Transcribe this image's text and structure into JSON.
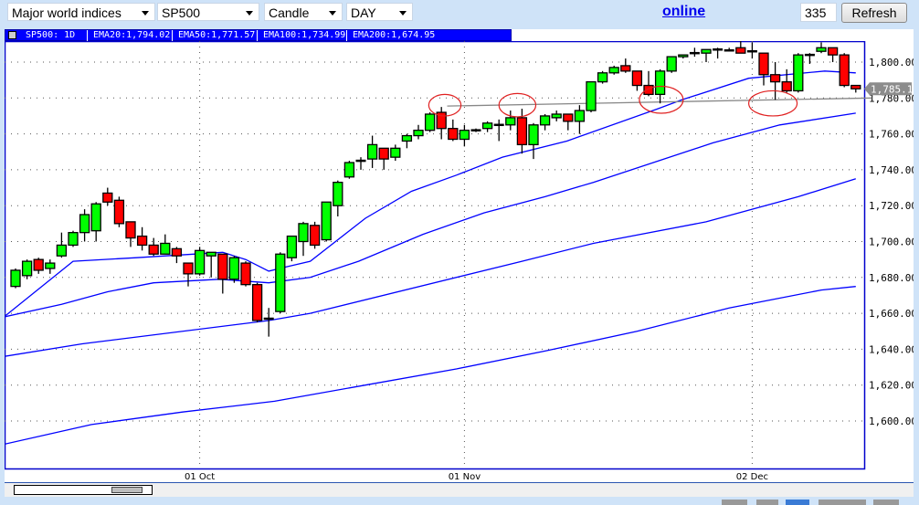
{
  "toolbar": {
    "market_select": "Major world indices",
    "symbol_select": "SP500",
    "chart_type_select": "Candle",
    "period_select": "DAY",
    "status_link": "online",
    "bars_count": "335",
    "refresh_label": "Refresh"
  },
  "chart_header": {
    "symbol": "SP500: 1D",
    "ema20": "EMA20:1,794.02",
    "ema50": "EMA50:1,771.57",
    "ema100": "EMA100:1,734.99",
    "ema200": "EMA200:1,674.95"
  },
  "colors": {
    "up_candle": "#00ff00",
    "down_candle": "#ff0000",
    "ema_line": "#0000ff",
    "annotation": "#e02020",
    "support_line": "#888888",
    "header_bar": "#0000ff"
  },
  "chart_data": {
    "type": "candlestick",
    "ylim": [
      1580,
      1818
    ],
    "grid": true,
    "y_ticks": [
      "1,600.00",
      "1,620.00",
      "1,640.00",
      "1,660.00",
      "1,680.00",
      "1,700.00",
      "1,720.00",
      "1,740.00",
      "1,760.00",
      "1,780.00",
      "1,800.00"
    ],
    "y_tick_values": [
      1600,
      1620,
      1640,
      1660,
      1680,
      1700,
      1720,
      1740,
      1760,
      1780,
      1800
    ],
    "x_ticks": [
      {
        "label": "01 Oct",
        "index": 16
      },
      {
        "label": "01 Nov",
        "index": 39
      },
      {
        "label": "02 Dec",
        "index": 64
      }
    ],
    "last_price_label": "1,785.11",
    "last_price": 1785.11,
    "candles_ohlc": [
      [
        1675,
        1685,
        1674,
        1684
      ],
      [
        1681,
        1690,
        1679,
        1689
      ],
      [
        1690,
        1691,
        1682,
        1684
      ],
      [
        1685,
        1690,
        1682,
        1688
      ],
      [
        1692,
        1705,
        1691,
        1698
      ],
      [
        1698,
        1706,
        1697,
        1705
      ],
      [
        1705,
        1718,
        1700,
        1715
      ],
      [
        1706,
        1722,
        1700,
        1721
      ],
      [
        1727,
        1730,
        1720,
        1722
      ],
      [
        1723,
        1725,
        1708,
        1710
      ],
      [
        1711,
        1711,
        1697,
        1702
      ],
      [
        1703,
        1708,
        1695,
        1698
      ],
      [
        1698,
        1702,
        1692,
        1693
      ],
      [
        1693,
        1704,
        1693,
        1699
      ],
      [
        1696,
        1697,
        1688,
        1692
      ],
      [
        1688,
        1688,
        1675,
        1682
      ],
      [
        1682,
        1697,
        1681,
        1695
      ],
      [
        1692,
        1694,
        1680,
        1694
      ],
      [
        1693,
        1693,
        1671,
        1679
      ],
      [
        1679,
        1692,
        1677,
        1691
      ],
      [
        1688,
        1689,
        1675,
        1676
      ],
      [
        1676,
        1677,
        1655,
        1656
      ],
      [
        1657,
        1663,
        1647,
        1657.3
      ],
      [
        1661,
        1694,
        1660,
        1693
      ],
      [
        1691,
        1703,
        1689,
        1703
      ],
      [
        1700,
        1711,
        1692,
        1710
      ],
      [
        1709,
        1711,
        1696,
        1698
      ],
      [
        1701,
        1722,
        1700,
        1722
      ],
      [
        1720,
        1734,
        1714,
        1733
      ],
      [
        1736,
        1745,
        1735,
        1744
      ],
      [
        1745,
        1747,
        1740,
        1745.3
      ],
      [
        1746,
        1759,
        1741,
        1754
      ],
      [
        1752,
        1752,
        1740,
        1746
      ],
      [
        1747,
        1754,
        1745,
        1752
      ],
      [
        1756,
        1760,
        1752,
        1759
      ],
      [
        1759,
        1765,
        1757,
        1762
      ],
      [
        1762,
        1772,
        1761,
        1771
      ],
      [
        1772,
        1775,
        1757,
        1763
      ],
      [
        1763,
        1768,
        1756,
        1757
      ],
      [
        1757,
        1765,
        1753,
        1762
      ],
      [
        1762,
        1763,
        1761,
        1762.3
      ],
      [
        1763,
        1767,
        1761,
        1766
      ],
      [
        1765,
        1768,
        1756,
        1765.3
      ],
      [
        1765,
        1773,
        1762,
        1769
      ],
      [
        1769,
        1774,
        1749,
        1754
      ],
      [
        1754,
        1766,
        1746,
        1765
      ],
      [
        1765,
        1771,
        1762,
        1770
      ],
      [
        1769,
        1773,
        1767,
        1771
      ],
      [
        1771,
        1771,
        1762,
        1767
      ],
      [
        1767,
        1776,
        1760,
        1773
      ],
      [
        1773,
        1789,
        1772,
        1789
      ],
      [
        1789,
        1795,
        1788,
        1794
      ],
      [
        1794,
        1798,
        1793,
        1797
      ],
      [
        1798,
        1802,
        1794,
        1795
      ],
      [
        1795,
        1795,
        1784,
        1787
      ],
      [
        1787,
        1795,
        1781,
        1782
      ],
      [
        1782,
        1796,
        1777,
        1795
      ],
      [
        1795,
        1803,
        1794,
        1803
      ],
      [
        1803,
        1804,
        1802,
        1804
      ],
      [
        1805,
        1808,
        1803,
        1805.3
      ],
      [
        1805,
        1807,
        1800,
        1807
      ],
      [
        1807,
        1808,
        1802,
        1807.3
      ],
      [
        1806.5,
        1808,
        1806,
        1806.8
      ],
      [
        1808,
        1813,
        1805,
        1805
      ],
      [
        1806,
        1811,
        1802,
        1806.2
      ],
      [
        1805,
        1805,
        1787,
        1793
      ],
      [
        1793,
        1800,
        1779,
        1789
      ],
      [
        1789,
        1796,
        1783,
        1784
      ],
      [
        1784,
        1805,
        1783,
        1804
      ],
      [
        1804,
        1805,
        1799,
        1804.3
      ],
      [
        1806,
        1811,
        1805,
        1808
      ],
      [
        1808,
        1808,
        1800,
        1804
      ],
      [
        1804,
        1805,
        1786,
        1787
      ],
      [
        1787,
        1787,
        1783,
        1785.11
      ]
    ],
    "ema_series": [
      {
        "name": "EMA20",
        "points": [
          [
            -1,
            1658
          ],
          [
            5,
            1689
          ],
          [
            10.5,
            1691
          ],
          [
            18,
            1694
          ],
          [
            20,
            1690
          ],
          [
            22,
            1683.5
          ],
          [
            23.6,
            1686
          ],
          [
            25.6,
            1689
          ],
          [
            30.4,
            1713
          ],
          [
            34.4,
            1728
          ],
          [
            38.3,
            1737
          ],
          [
            42.3,
            1747
          ],
          [
            47.9,
            1756
          ],
          [
            55.8,
            1774
          ],
          [
            57.9,
            1779
          ],
          [
            63.7,
            1791
          ],
          [
            70.3,
            1795
          ],
          [
            73,
            1794.02
          ]
        ]
      },
      {
        "name": "EMA50",
        "points": [
          [
            -1,
            1658
          ],
          [
            4,
            1665
          ],
          [
            8,
            1672
          ],
          [
            12,
            1677
          ],
          [
            17.7,
            1679
          ],
          [
            22,
            1677
          ],
          [
            25.6,
            1680
          ],
          [
            29.8,
            1689
          ],
          [
            35.4,
            1704
          ],
          [
            40.7,
            1716
          ],
          [
            46,
            1725
          ],
          [
            50.2,
            1733
          ],
          [
            60.6,
            1755
          ],
          [
            66.4,
            1765
          ],
          [
            73,
            1771.57
          ]
        ]
      },
      {
        "name": "EMA100",
        "points": [
          [
            -1,
            1636
          ],
          [
            5.8,
            1643
          ],
          [
            22,
            1656
          ],
          [
            25.6,
            1660
          ],
          [
            44,
            1689
          ],
          [
            50.2,
            1699
          ],
          [
            60,
            1711
          ],
          [
            68,
            1725
          ],
          [
            73,
            1734.99
          ]
        ]
      },
      {
        "name": "EMA200",
        "points": [
          [
            -1,
            1587
          ],
          [
            6.6,
            1598
          ],
          [
            14.5,
            1605
          ],
          [
            22.5,
            1611
          ],
          [
            30.4,
            1620
          ],
          [
            38.3,
            1629
          ],
          [
            46,
            1639
          ],
          [
            54,
            1650
          ],
          [
            62,
            1663
          ],
          [
            70,
            1673
          ],
          [
            73,
            1674.95
          ]
        ]
      }
    ],
    "support_line": [
      [
        37.5,
        1775.5
      ],
      [
        74.4,
        1780
      ]
    ],
    "annotation_ellipses": [
      {
        "index": 37.3,
        "price": 1776,
        "rx_bars": 1.4,
        "ry_price": 6
      },
      {
        "index": 43.6,
        "price": 1776,
        "rx_bars": 1.6,
        "ry_price": 6.5
      },
      {
        "index": 56.1,
        "price": 1779,
        "rx_bars": 1.9,
        "ry_price": 7.5
      },
      {
        "index": 65.8,
        "price": 1777,
        "rx_bars": 2.1,
        "ry_price": 7
      }
    ]
  }
}
